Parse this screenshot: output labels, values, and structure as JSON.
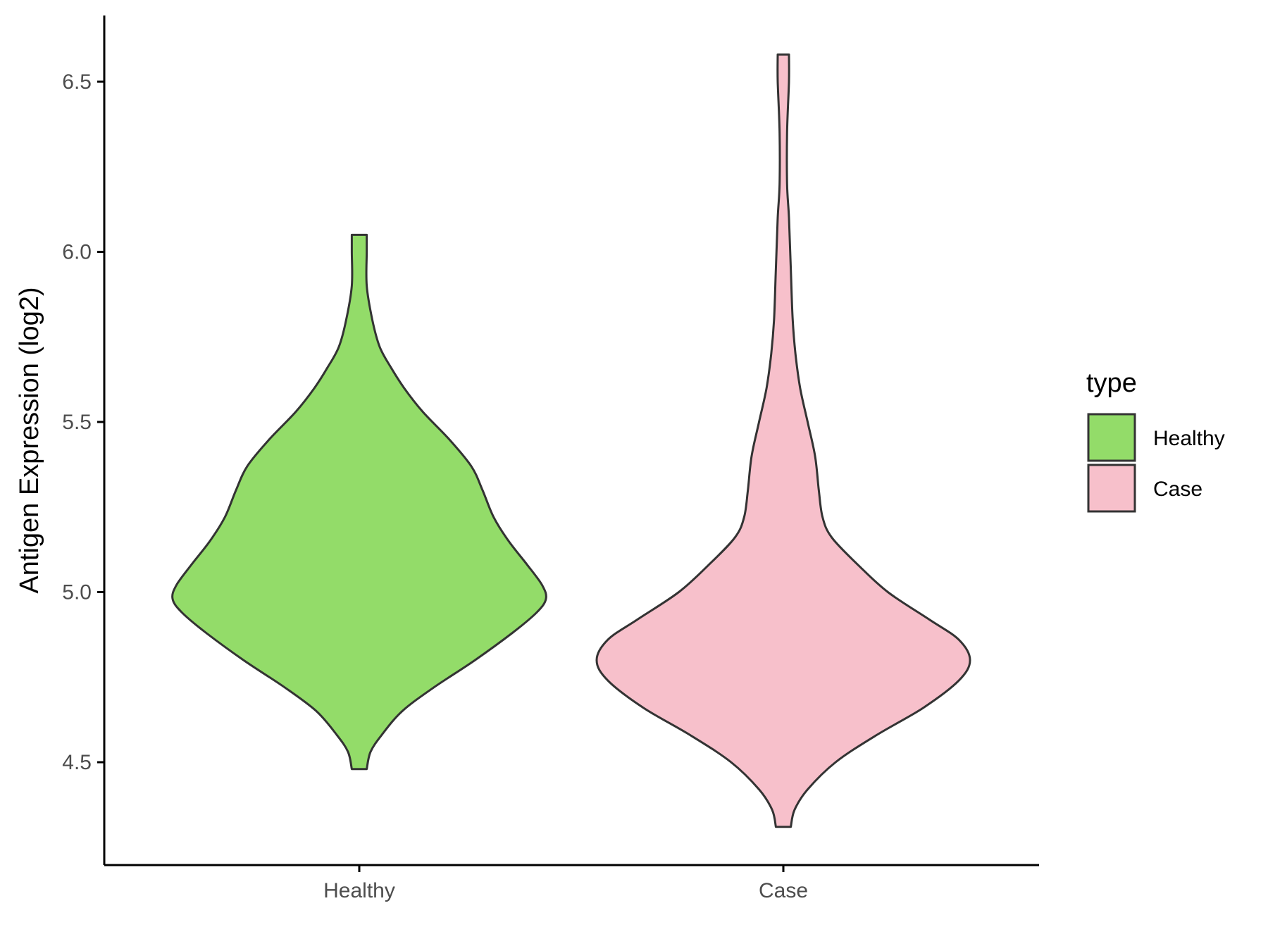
{
  "chart_data": {
    "type": "violin",
    "ylabel": "Antigen Expression (log2)",
    "xlabel": "",
    "categories": [
      "Healthy",
      "Case"
    ],
    "y_ticks": [
      4.5,
      5.0,
      5.5,
      6.0,
      6.5
    ],
    "y_tick_labels": [
      "4.5",
      "5.0",
      "5.5",
      "6.0",
      "6.5"
    ],
    "ylim": [
      4.23,
      6.71
    ],
    "legend": {
      "title": "type",
      "position": "right",
      "items": [
        {
          "label": "Healthy",
          "color": "#93dc69"
        },
        {
          "label": "Case",
          "color": "#f7c0cb"
        }
      ]
    },
    "grid": false,
    "series": [
      {
        "name": "Healthy",
        "color": "#93dc69",
        "range": [
          4.48,
          6.05
        ],
        "density_profile": [
          [
            4.48,
            0.04
          ],
          [
            4.53,
            0.06
          ],
          [
            4.58,
            0.12
          ],
          [
            4.65,
            0.23
          ],
          [
            4.72,
            0.4
          ],
          [
            4.8,
            0.62
          ],
          [
            4.88,
            0.82
          ],
          [
            4.94,
            0.95
          ],
          [
            4.98,
            1.0
          ],
          [
            5.02,
            0.98
          ],
          [
            5.08,
            0.9
          ],
          [
            5.15,
            0.8
          ],
          [
            5.22,
            0.72
          ],
          [
            5.3,
            0.66
          ],
          [
            5.37,
            0.6
          ],
          [
            5.45,
            0.48
          ],
          [
            5.53,
            0.34
          ],
          [
            5.6,
            0.24
          ],
          [
            5.66,
            0.17
          ],
          [
            5.72,
            0.11
          ],
          [
            5.8,
            0.07
          ],
          [
            5.9,
            0.04
          ],
          [
            6.0,
            0.04
          ],
          [
            6.05,
            0.04
          ]
        ]
      },
      {
        "name": "Case",
        "color": "#f7c0cb",
        "range": [
          4.31,
          6.58
        ],
        "density_profile": [
          [
            4.31,
            0.04
          ],
          [
            4.36,
            0.06
          ],
          [
            4.42,
            0.13
          ],
          [
            4.5,
            0.28
          ],
          [
            4.58,
            0.5
          ],
          [
            4.66,
            0.75
          ],
          [
            4.74,
            0.94
          ],
          [
            4.8,
            1.0
          ],
          [
            4.86,
            0.94
          ],
          [
            4.92,
            0.78
          ],
          [
            5.0,
            0.56
          ],
          [
            5.08,
            0.4
          ],
          [
            5.16,
            0.26
          ],
          [
            5.22,
            0.21
          ],
          [
            5.3,
            0.19
          ],
          [
            5.4,
            0.17
          ],
          [
            5.5,
            0.13
          ],
          [
            5.6,
            0.09
          ],
          [
            5.7,
            0.065
          ],
          [
            5.8,
            0.05
          ],
          [
            5.95,
            0.04
          ],
          [
            6.1,
            0.03
          ],
          [
            6.2,
            0.02
          ],
          [
            6.35,
            0.02
          ],
          [
            6.5,
            0.03
          ],
          [
            6.58,
            0.03
          ]
        ]
      }
    ]
  }
}
